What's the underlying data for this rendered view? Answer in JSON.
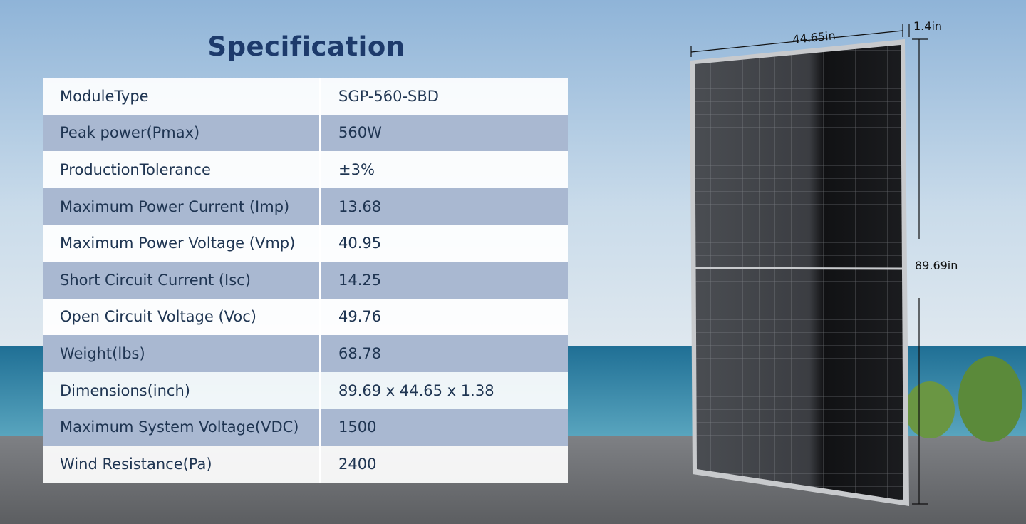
{
  "title": "Specification",
  "table": {
    "rows": [
      [
        "ModuleType",
        "SGP-560-SBD"
      ],
      [
        "Peak power(Pmax)",
        "560W"
      ],
      [
        "ProductionTolerance",
        "±3%"
      ],
      [
        "Maximum Power Current (Imp)",
        "13.68"
      ],
      [
        "Maximum Power Voltage (Vmp)",
        "40.95"
      ],
      [
        "Short Circuit Current (Isc)",
        "14.25"
      ],
      [
        "Open Circuit Voltage (Voc)",
        "49.76"
      ],
      [
        "Weight(lbs)",
        "68.78"
      ],
      [
        "Dimensions(inch)",
        "89.69 x 44.65 x 1.38"
      ],
      [
        "Maximum System Voltage(VDC)",
        "1500"
      ],
      [
        "Wind Resistance(Pa)",
        "2400"
      ]
    ]
  },
  "panel": {
    "width_label": "44.65in",
    "depth_label": "1.4in",
    "height_label": "89.69in"
  }
}
